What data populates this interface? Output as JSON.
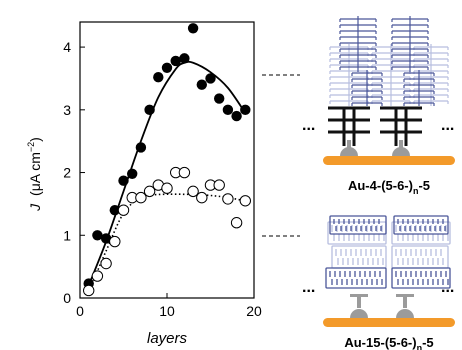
{
  "chart_data": {
    "type": "scatter",
    "xlabel": "layers",
    "ylabel_main": "J",
    "ylabel_unit_html": "(μA cm",
    "ylabel_exp": "−2",
    "ylabel_close": ")",
    "xlim": [
      0,
      20
    ],
    "ylim": [
      0,
      4.4
    ],
    "xticks": [
      "0",
      "10",
      "20"
    ],
    "yticks": [
      "0",
      "1",
      "2",
      "3",
      "4"
    ],
    "grid": false,
    "series": [
      {
        "marker": "filled-circle",
        "fit": "solid",
        "points": [
          [
            1,
            0.23
          ],
          [
            2,
            1.0
          ],
          [
            3,
            0.95
          ],
          [
            4,
            1.4
          ],
          [
            5,
            1.87
          ],
          [
            6,
            1.98
          ],
          [
            7,
            2.4
          ],
          [
            8,
            3.0
          ],
          [
            9,
            3.52
          ],
          [
            10,
            3.67
          ],
          [
            11,
            3.78
          ],
          [
            12,
            3.82
          ],
          [
            13,
            4.3
          ],
          [
            14,
            3.4
          ],
          [
            15,
            3.5
          ],
          [
            16,
            3.18
          ],
          [
            17,
            3.0
          ],
          [
            18,
            2.9
          ],
          [
            19,
            3.0
          ]
        ],
        "fit_curve": [
          [
            1,
            0.2
          ],
          [
            3,
            0.9
          ],
          [
            5,
            1.7
          ],
          [
            7,
            2.5
          ],
          [
            9,
            3.2
          ],
          [
            11,
            3.65
          ],
          [
            12,
            3.75
          ],
          [
            13,
            3.75
          ],
          [
            15,
            3.6
          ],
          [
            17,
            3.35
          ],
          [
            19,
            2.95
          ]
        ]
      },
      {
        "marker": "open-circle",
        "fit": "dotted",
        "points": [
          [
            1,
            0.12
          ],
          [
            2,
            0.35
          ],
          [
            3,
            0.55
          ],
          [
            4,
            0.9
          ],
          [
            5,
            1.4
          ],
          [
            6,
            1.6
          ],
          [
            7,
            1.6
          ],
          [
            8,
            1.7
          ],
          [
            9,
            1.8
          ],
          [
            10,
            1.75
          ],
          [
            11,
            2.0
          ],
          [
            12,
            2.0
          ],
          [
            13,
            1.7
          ],
          [
            14,
            1.6
          ],
          [
            15,
            1.8
          ],
          [
            16,
            1.8
          ],
          [
            17,
            1.58
          ],
          [
            18,
            1.2
          ],
          [
            19,
            1.55
          ]
        ],
        "fit_curve": [
          [
            1,
            0.1
          ],
          [
            3,
            0.75
          ],
          [
            5,
            1.35
          ],
          [
            7,
            1.6
          ],
          [
            9,
            1.65
          ],
          [
            13,
            1.65
          ],
          [
            16,
            1.62
          ],
          [
            19,
            1.55
          ]
        ]
      }
    ]
  },
  "legend": {
    "top_label": {
      "base": "Au-",
      "n1": "4",
      "mid": "-(5-6-)",
      "sub": "n",
      "end": "-5"
    },
    "bottom_label": {
      "base": "Au-",
      "n1": "15",
      "mid": "-(5-6-)",
      "sub": "n",
      "end": "-5"
    },
    "dots": "..."
  },
  "colors": {
    "electrode": "#f39a2a",
    "molecule_light": "#b7bedf",
    "molecule_dark": "#4a5699",
    "anchor": "#9b9b9b",
    "series_fill": "#000000"
  }
}
